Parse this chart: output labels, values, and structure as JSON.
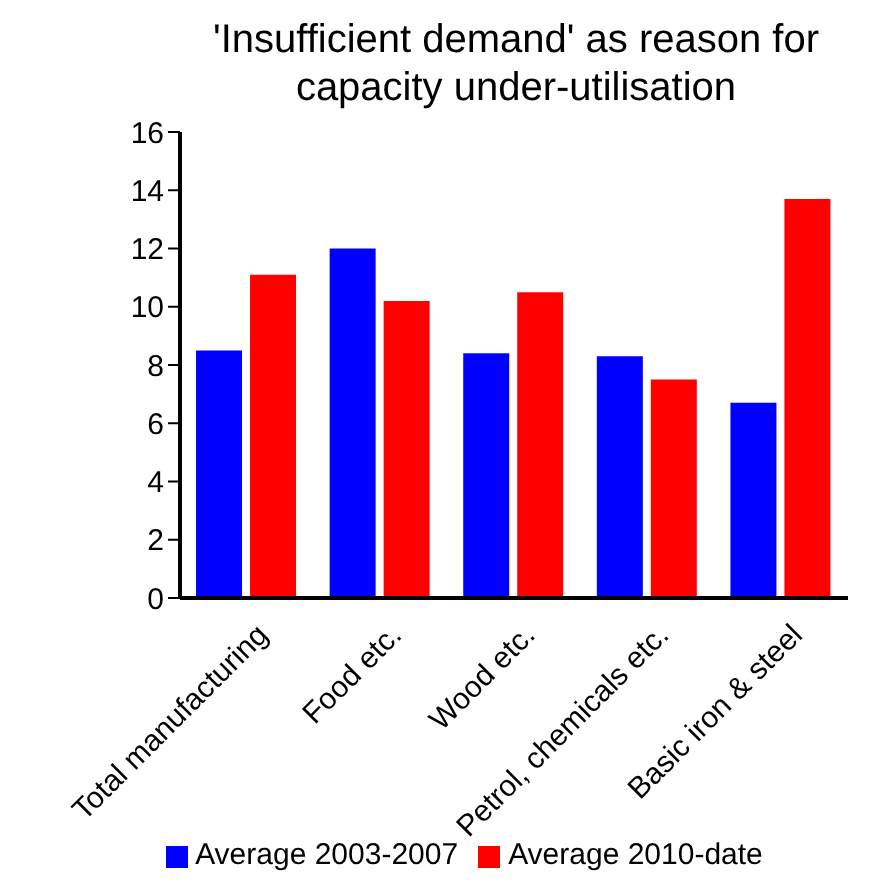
{
  "chart_data": {
    "type": "bar",
    "title": "'Insufficient demand' as reason for capacity under-utilisation",
    "categories": [
      "Total manufacturing",
      "Food etc.",
      "Wood etc.",
      "Petrol, chemicals etc.",
      "Basic iron & steel"
    ],
    "series": [
      {
        "name": "Average 2003-2007",
        "color": "#0000ff",
        "values": [
          8.5,
          12.0,
          8.4,
          8.3,
          6.7
        ]
      },
      {
        "name": "Average 2010-date",
        "color": "#ff0000",
        "values": [
          11.1,
          10.2,
          10.5,
          7.5,
          13.7
        ]
      }
    ],
    "ylim": [
      0,
      16
    ],
    "yticks": [
      0,
      2,
      4,
      6,
      8,
      10,
      12,
      14,
      16
    ],
    "grid": false,
    "legend": "bottom"
  }
}
